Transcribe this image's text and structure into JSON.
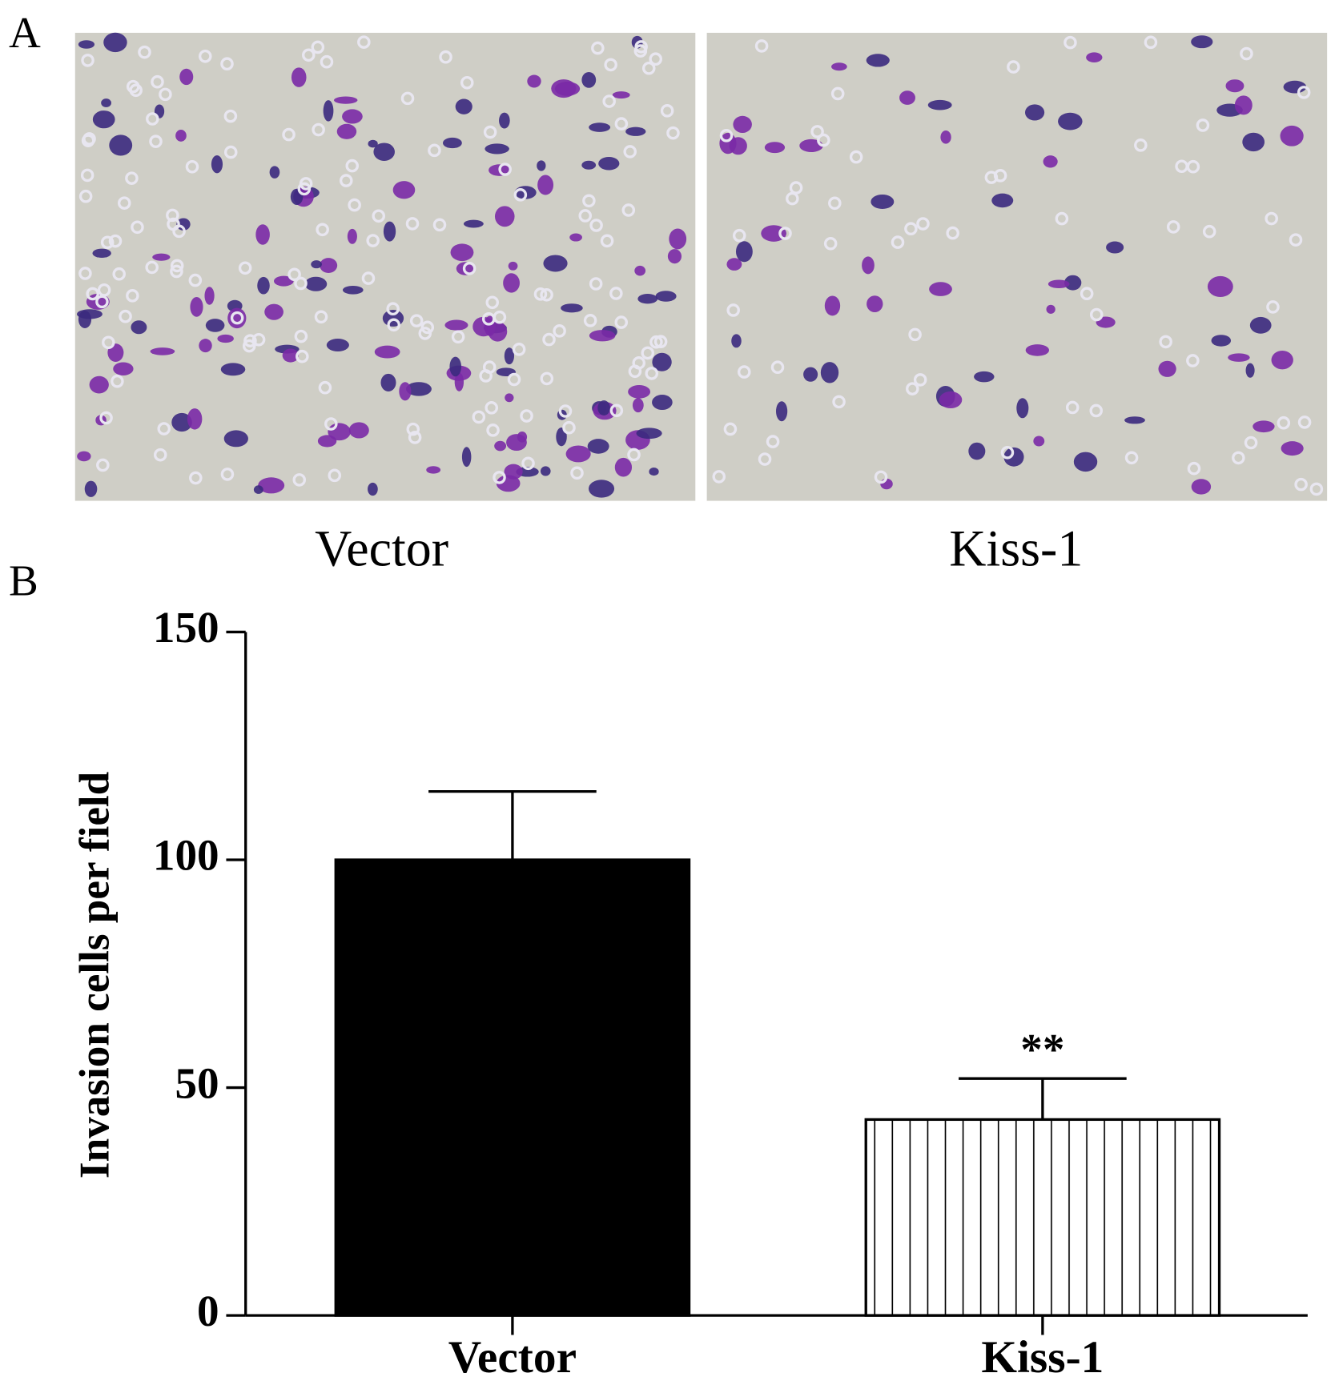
{
  "panel_a": {
    "label": "A",
    "captions": [
      "Vector",
      "Kiss-1"
    ]
  },
  "panel_b": {
    "label": "B"
  },
  "chart_data": {
    "type": "bar",
    "ylabel": "Invasion cells per field",
    "categories": [
      "Vector",
      "Kiss-1"
    ],
    "values": [
      100,
      43
    ],
    "errors": [
      15,
      9
    ],
    "annotations": [
      null,
      "**"
    ],
    "colors": [
      "#000000",
      "#ffffff"
    ],
    "hatch": [
      null,
      "vertical"
    ],
    "ylim": [
      0,
      150
    ],
    "yticks": [
      0,
      50,
      100,
      150
    ]
  }
}
